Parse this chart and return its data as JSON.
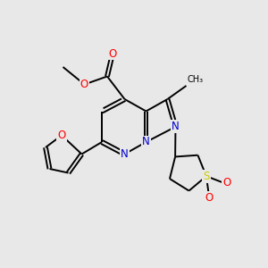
{
  "background_color": "#e8e8e8",
  "bond_color": "#000000",
  "atom_colors": {
    "N": "#0000cc",
    "O": "#ff0000",
    "S": "#cccc00",
    "C": "#000000"
  },
  "figsize": [
    3.0,
    3.0
  ],
  "dpi": 100,
  "lw": 1.4,
  "fs": 8.5
}
